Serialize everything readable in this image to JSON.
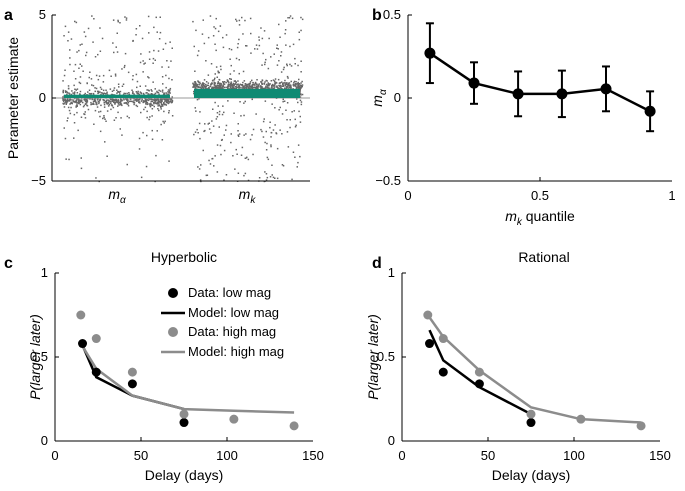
{
  "chart_data": [
    {
      "panel": "a",
      "type": "scatter",
      "title": "",
      "xlabel": "",
      "ylabel": "Parameter estimate",
      "ylim": [
        -5,
        5
      ],
      "yticks": [
        "5",
        "0",
        "−5"
      ],
      "categories": [
        {
          "label": "m",
          "subscript": "α",
          "bar_value": 0.2,
          "spread": "dense near 0, range -5 to 5"
        },
        {
          "label": "m",
          "subscript": "k",
          "bar_value": 0.55,
          "spread": "dense 0.2 to 1.2, range -5 to 5"
        }
      ],
      "bar_color": "#0f8a73",
      "point_color": "#666666"
    },
    {
      "panel": "b",
      "type": "line",
      "title": "",
      "xlabel": "m",
      "xlabel_subscript": "k",
      "xlabel_suffix": " quantile",
      "ylabel": "m",
      "ylabel_subscript": "α",
      "xlim": [
        0,
        1
      ],
      "ylim": [
        -0.5,
        0.5
      ],
      "xticks": [
        "0",
        "0.5",
        "1"
      ],
      "yticks": [
        "0.5",
        "0",
        "−0.5"
      ],
      "x": [
        0.083,
        0.25,
        0.417,
        0.583,
        0.75,
        0.917
      ],
      "y": [
        0.27,
        0.09,
        0.025,
        0.025,
        0.055,
        -0.08
      ],
      "err": [
        0.18,
        0.125,
        0.135,
        0.14,
        0.135,
        0.12
      ]
    },
    {
      "panel": "c",
      "type": "line",
      "title": "Hyperbolic",
      "xlabel": "Delay (days)",
      "ylabel": "P(larger later)",
      "xlim": [
        0,
        150
      ],
      "ylim": [
        0,
        1
      ],
      "xticks": [
        "0",
        "50",
        "100",
        "150"
      ],
      "yticks": [
        "1",
        "0.5",
        "0"
      ],
      "legend": [
        "Data: low mag",
        "Model: low mag",
        "Data: high mag",
        "Model: high mag"
      ],
      "series": [
        {
          "name": "Data: low mag",
          "kind": "points",
          "color": "#000000",
          "x": [
            16,
            24,
            45,
            75
          ],
          "y": [
            0.58,
            0.41,
            0.34,
            0.11
          ]
        },
        {
          "name": "Data: high mag",
          "kind": "points",
          "color": "#8c8c8c",
          "x": [
            15,
            24,
            45,
            75,
            104,
            139
          ],
          "y": [
            0.75,
            0.61,
            0.41,
            0.16,
            0.13,
            0.09
          ]
        },
        {
          "name": "Model: low mag",
          "kind": "line",
          "color": "#000000",
          "x": [
            16,
            24,
            45,
            75
          ],
          "y": [
            0.57,
            0.38,
            0.27,
            0.19
          ]
        },
        {
          "name": "Model: high mag",
          "kind": "line",
          "color": "#8c8c8c",
          "x": [
            15,
            24,
            45,
            75,
            104,
            139
          ],
          "y": [
            0.58,
            0.43,
            0.27,
            0.19,
            0.18,
            0.17
          ]
        }
      ]
    },
    {
      "panel": "d",
      "type": "line",
      "title": "Rational",
      "xlabel": "Delay (days)",
      "ylabel": "P(larger later)",
      "xlim": [
        0,
        150
      ],
      "ylim": [
        0,
        1
      ],
      "xticks": [
        "0",
        "50",
        "100",
        "150"
      ],
      "yticks": [
        "1",
        "0.5",
        "0"
      ],
      "series": [
        {
          "name": "Data: low mag",
          "kind": "points",
          "color": "#000000",
          "x": [
            16,
            24,
            45,
            75
          ],
          "y": [
            0.58,
            0.41,
            0.34,
            0.11
          ]
        },
        {
          "name": "Data: high mag",
          "kind": "points",
          "color": "#8c8c8c",
          "x": [
            15,
            24,
            45,
            75,
            104,
            139
          ],
          "y": [
            0.75,
            0.61,
            0.41,
            0.16,
            0.13,
            0.09
          ]
        },
        {
          "name": "Model: low mag",
          "kind": "line",
          "color": "#000000",
          "x": [
            16,
            24,
            45,
            75
          ],
          "y": [
            0.66,
            0.48,
            0.32,
            0.16
          ]
        },
        {
          "name": "Model: high mag",
          "kind": "line",
          "color": "#8c8c8c",
          "x": [
            15,
            24,
            45,
            75,
            104,
            139
          ],
          "y": [
            0.75,
            0.62,
            0.42,
            0.2,
            0.13,
            0.11
          ]
        }
      ]
    }
  ]
}
